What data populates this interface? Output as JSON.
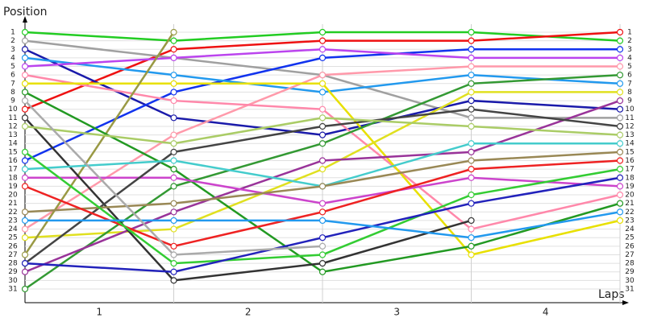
{
  "chart_data": {
    "type": "line",
    "y_label": "Position",
    "x_label": "Laps",
    "x": [
      0,
      1,
      2,
      3,
      4
    ],
    "xlim": [
      0,
      4
    ],
    "xticks": [
      1,
      2,
      3,
      4
    ],
    "ylim": [
      1,
      31
    ],
    "yticks": [
      1,
      2,
      3,
      4,
      5,
      6,
      7,
      8,
      9,
      10,
      11,
      12,
      13,
      14,
      15,
      16,
      17,
      18,
      19,
      20,
      21,
      22,
      23,
      24,
      25,
      26,
      27,
      28,
      29,
      30,
      31
    ],
    "y_inverted": true,
    "grid": true,
    "series": [
      {
        "color": "#22cc22",
        "values": [
          1,
          2,
          1,
          1,
          2
        ]
      },
      {
        "color": "#ee1111",
        "values": [
          10,
          3,
          2,
          2,
          1
        ]
      },
      {
        "color": "#a0a0a0",
        "values": [
          2,
          4,
          6,
          11,
          11
        ]
      },
      {
        "color": "#1a1aaa",
        "values": [
          3,
          11,
          13,
          9,
          10
        ]
      },
      {
        "color": "#1133ee",
        "values": [
          16,
          8,
          4,
          3,
          3
        ]
      },
      {
        "color": "#2299ee",
        "values": [
          4,
          6,
          8,
          6,
          7
        ]
      },
      {
        "color": "#bb44ee",
        "values": [
          5,
          4,
          3,
          4,
          4
        ]
      },
      {
        "color": "#ff99aa",
        "values": [
          24,
          13,
          6,
          5,
          5
        ]
      },
      {
        "color": "#ff88aa",
        "values": [
          6,
          9,
          10,
          24,
          20
        ]
      },
      {
        "color": "#e8e000",
        "values": [
          7,
          7,
          7,
          27,
          23
        ]
      },
      {
        "color": "#e0e020",
        "values": [
          25,
          24,
          17,
          8,
          8
        ]
      },
      {
        "color": "#999944",
        "values": [
          27,
          1,
          null,
          null,
          null
        ]
      },
      {
        "color": "#229922",
        "values": [
          8,
          17,
          29,
          26,
          21
        ]
      },
      {
        "color": "#339933",
        "values": [
          31,
          19,
          14,
          7,
          6
        ]
      },
      {
        "color": "#993399",
        "values": [
          29,
          22,
          16,
          15,
          9
        ]
      },
      {
        "color": "#cc44cc",
        "values": [
          18,
          18,
          21,
          18,
          19
        ]
      },
      {
        "color": "#333333",
        "values": [
          11,
          30,
          28,
          23,
          null
        ]
      },
      {
        "color": "#444444",
        "values": [
          28,
          15,
          12,
          10,
          12
        ]
      },
      {
        "color": "#aacc66",
        "values": [
          12,
          14,
          11,
          12,
          13
        ]
      },
      {
        "color": "#44cccc",
        "values": [
          17,
          16,
          19,
          14,
          14
        ]
      },
      {
        "color": "#998855",
        "values": [
          22,
          21,
          19,
          16,
          15
        ]
      },
      {
        "color": "#ee2222",
        "values": [
          19,
          26,
          22,
          17,
          16
        ]
      },
      {
        "color": "#33cc33",
        "values": [
          15,
          28,
          27,
          20,
          17
        ]
      },
      {
        "color": "#2222bb",
        "values": [
          28,
          29,
          25,
          21,
          18
        ]
      },
      {
        "color": "#2299ee",
        "values": [
          23,
          23,
          23,
          25,
          22
        ]
      },
      {
        "color": "#aaaaaa",
        "values": [
          9,
          27,
          26,
          null,
          null
        ]
      }
    ]
  }
}
